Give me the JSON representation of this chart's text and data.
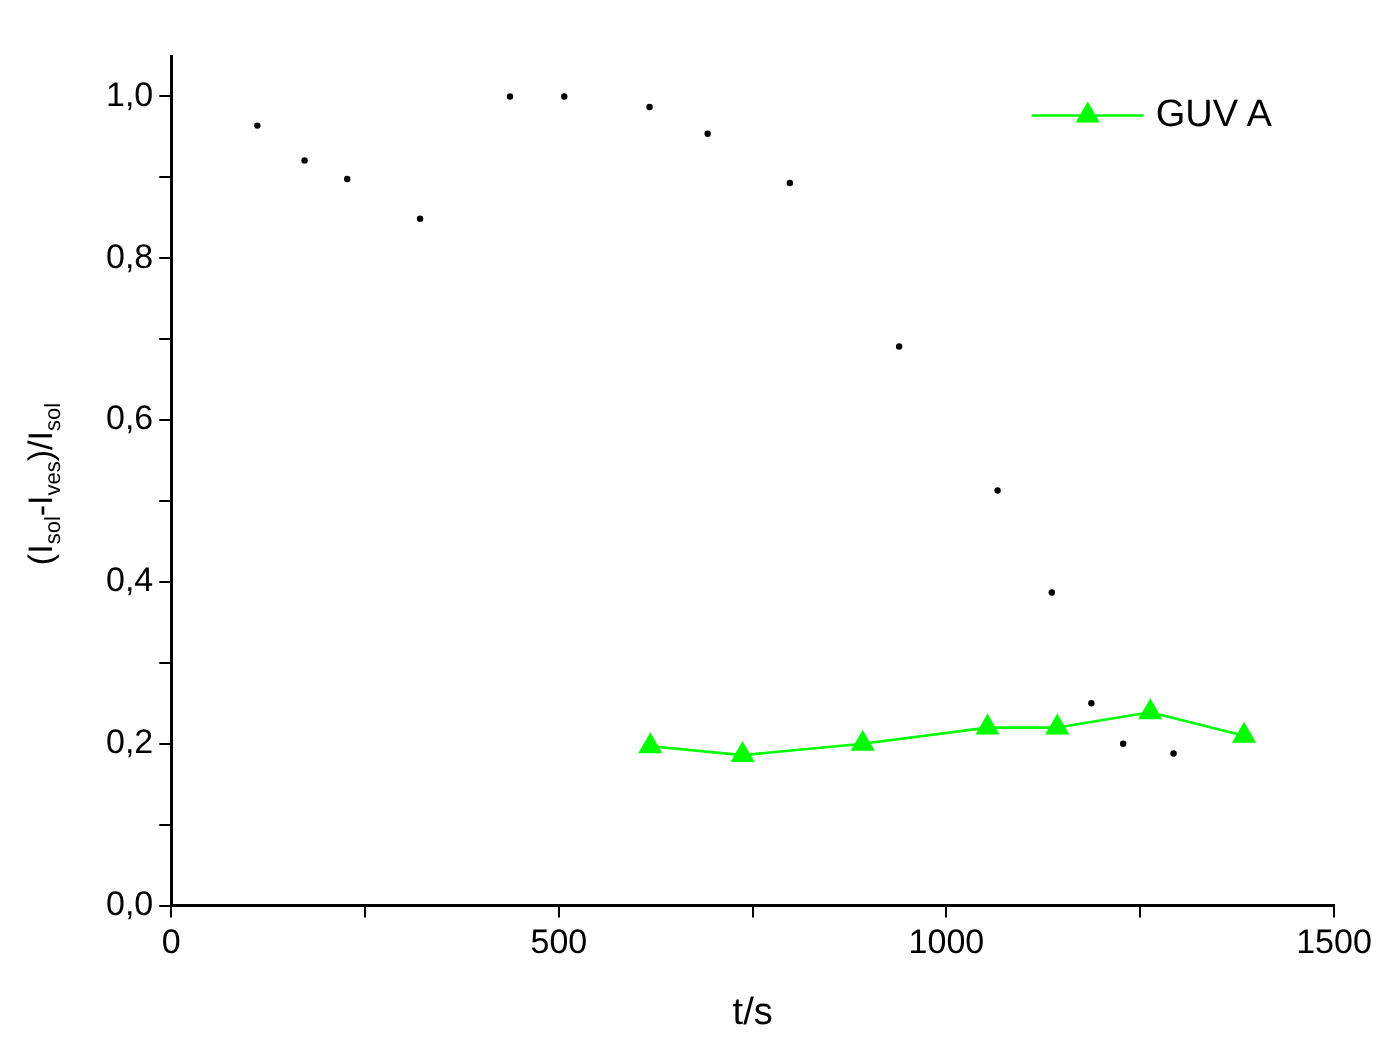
{
  "chart_data": {
    "type": "line",
    "xlabel": "t/s",
    "ylabel": "(I$_{sol}$-I$_{ves}$)/I$_{sol}$",
    "xlim": [
      0,
      1500
    ],
    "xticks": [
      0,
      {
        "value": 250,
        "label": null
      },
      500,
      {
        "value": 750,
        "label": null
      },
      1000,
      {
        "value": 1250,
        "label": null
      },
      1500
    ],
    "ylim": [
      0,
      1.05
    ],
    "yticks": [
      {
        "value": 0,
        "label": "0,0"
      },
      {
        "value": 0.1,
        "label": null
      },
      {
        "value": 0.2,
        "label": "0,2"
      },
      {
        "value": 0.3,
        "label": null
      },
      {
        "value": 0.4,
        "label": "0,4"
      },
      {
        "value": 0.5,
        "label": null
      },
      {
        "value": 0.6,
        "label": "0,6"
      },
      {
        "value": 0.7,
        "label": null
      },
      {
        "value": 0.8,
        "label": "0,8"
      },
      {
        "value": 0.9,
        "label": null
      },
      {
        "value": 1.0,
        "label": "1,0"
      }
    ],
    "grid": false,
    "legend": "top right",
    "series": [
      {
        "type": "scatter",
        "color": "#000000",
        "marker": "circle",
        "x": [
          111,
          172,
          227,
          321,
          437,
          507,
          617,
          692,
          798,
          939,
          1066,
          1136,
          1187,
          1228,
          1293
        ],
        "values": [
          0.964,
          0.921,
          0.898,
          0.849,
          1.0,
          1.0,
          0.987,
          0.954,
          0.893,
          0.691,
          0.513,
          0.387,
          0.25,
          0.2,
          0.188
        ]
      },
      {
        "name": "GUV A",
        "color": "#00ff00",
        "marker": "triangle",
        "line_style": "solid",
        "x": [
          618,
          737,
          892,
          1053,
          1143,
          1263,
          1384
        ],
        "values": [
          0.197,
          0.186,
          0.2,
          0.22,
          0.22,
          0.239,
          0.21
        ]
      }
    ]
  }
}
